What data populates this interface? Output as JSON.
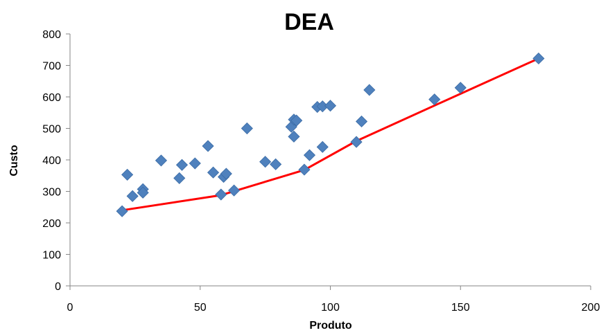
{
  "chart_data": {
    "type": "scatter",
    "title": "DEA",
    "xlabel": "Produto",
    "ylabel": "Custo",
    "xlim": [
      0,
      200
    ],
    "ylim": [
      0,
      800
    ],
    "xticks": [
      0,
      50,
      100,
      150,
      200
    ],
    "yticks": [
      0,
      100,
      200,
      300,
      400,
      500,
      600,
      700,
      800
    ],
    "grid": false,
    "legend": "none",
    "series": [
      {
        "type": "scatter",
        "marker": "diamond",
        "color": "#4F81BD",
        "points": [
          [
            20,
            237
          ],
          [
            22,
            353
          ],
          [
            24,
            285
          ],
          [
            28,
            307
          ],
          [
            28,
            296
          ],
          [
            35,
            398
          ],
          [
            42,
            342
          ],
          [
            43,
            384
          ],
          [
            48,
            389
          ],
          [
            53,
            444
          ],
          [
            55,
            360
          ],
          [
            58,
            290
          ],
          [
            59,
            346
          ],
          [
            60,
            356
          ],
          [
            63,
            303
          ],
          [
            68,
            500
          ],
          [
            75,
            394
          ],
          [
            79,
            386
          ],
          [
            85,
            505
          ],
          [
            86,
            474
          ],
          [
            86,
            528
          ],
          [
            87,
            525
          ],
          [
            90,
            369
          ],
          [
            92,
            415
          ],
          [
            95,
            568
          ],
          [
            97,
            441
          ],
          [
            97,
            570
          ],
          [
            100,
            572
          ],
          [
            110,
            457
          ],
          [
            112,
            522
          ],
          [
            115,
            622
          ],
          [
            140,
            592
          ],
          [
            150,
            629
          ],
          [
            180,
            722
          ]
        ]
      },
      {
        "type": "line",
        "color": "#FF0000",
        "points": [
          [
            20,
            240
          ],
          [
            58,
            288
          ],
          [
            90,
            368
          ],
          [
            110,
            460
          ],
          [
            150,
            610
          ],
          [
            180,
            722
          ]
        ]
      }
    ]
  }
}
